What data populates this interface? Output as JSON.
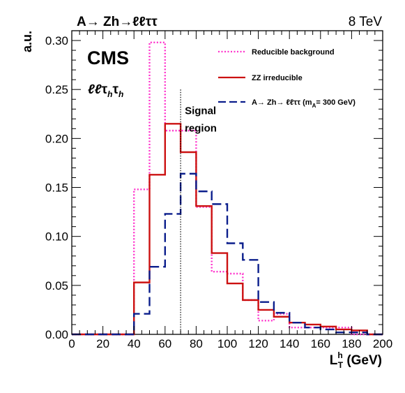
{
  "chart_data": {
    "type": "step",
    "header_left": "A→ Zh→ℓℓττ",
    "header_right": "8 TeV",
    "experiment": "CMS",
    "channel": "ℓℓτ_hτ_h",
    "ylabel": "a.u.",
    "xlabel": "L_T^h (GeV)",
    "xlim": [
      0,
      200
    ],
    "ylim": [
      0,
      0.31
    ],
    "x_ticks": [
      0,
      20,
      40,
      60,
      80,
      100,
      120,
      140,
      160,
      180,
      200
    ],
    "y_ticks": [
      "0.00",
      "0.05",
      "0.10",
      "0.15",
      "0.20",
      "0.25",
      "0.30"
    ],
    "bin_edges": [
      0,
      10,
      20,
      30,
      40,
      50,
      60,
      70,
      80,
      90,
      100,
      110,
      120,
      130,
      140,
      150,
      160,
      170,
      180,
      190,
      200
    ],
    "signal_line_x": 70,
    "signal_region_label": [
      "Signal",
      "region"
    ],
    "legend_position": "top-right",
    "series": [
      {
        "name": "Reducible background",
        "color": "#ff33cc",
        "style": "dotted",
        "values": [
          0,
          0,
          0,
          0,
          0.148,
          0.298,
          0.208,
          0.208,
          0.13,
          0.064,
          0.062,
          0.035,
          0.014,
          0.021,
          0.007,
          0.007,
          0.007,
          0.007,
          0.0,
          0.0
        ]
      },
      {
        "name": "ZZ irreducible",
        "color": "#cc1111",
        "style": "solid",
        "values": [
          0,
          0,
          0,
          0,
          0.053,
          0.163,
          0.215,
          0.186,
          0.131,
          0.083,
          0.052,
          0.035,
          0.025,
          0.018,
          0.012,
          0.01,
          0.008,
          0.005,
          0.004,
          0.0
        ]
      },
      {
        "name": "A→ Zh→ ℓℓττ (m_A= 300 GeV)",
        "color": "#0b1e8c",
        "style": "dashed",
        "values": [
          0,
          0,
          0,
          0,
          0.021,
          0.069,
          0.123,
          0.164,
          0.146,
          0.133,
          0.093,
          0.076,
          0.033,
          0.022,
          0.012,
          0.007,
          0.005,
          0.002,
          0.002,
          0.0
        ]
      }
    ]
  }
}
